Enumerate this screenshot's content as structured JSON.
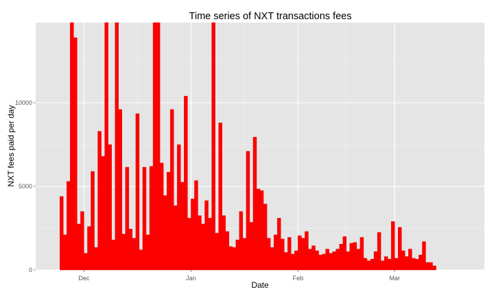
{
  "chart_data": {
    "type": "bar",
    "title": "Time series of NXT transactions fees",
    "xlabel": "Date",
    "ylabel": "NXT fees paid per day",
    "x_ticks": [
      {
        "label": "Dec",
        "date": "2013-12-01"
      },
      {
        "label": "Jan",
        "date": "2014-01-01"
      },
      {
        "label": "Feb",
        "date": "2014-02-01"
      },
      {
        "label": "Mar",
        "date": "2014-03-01"
      }
    ],
    "y_ticks": [
      0,
      5000,
      10000
    ],
    "ylim": [
      0,
      14800
    ],
    "xlim": [
      "2013-11-17",
      "2014-03-27"
    ],
    "grid": true,
    "colors": {
      "bar": "#ff0000",
      "panel": "#e5e5e5",
      "grid_major": "#ffffff",
      "grid_minor": "#f2f2f2"
    },
    "start_date": "2013-11-24",
    "values": [
      4400,
      2100,
      5300,
      14800,
      13900,
      2750,
      3500,
      1000,
      2600,
      5900,
      1350,
      8300,
      6800,
      14800,
      7500,
      1800,
      14800,
      9600,
      2150,
      6150,
      2450,
      1900,
      9350,
      1200,
      6150,
      2100,
      6200,
      14800,
      14800,
      6400,
      4450,
      5850,
      9600,
      3850,
      7500,
      5250,
      10400,
      3100,
      4250,
      5350,
      3250,
      2750,
      4150,
      3100,
      14800,
      2200,
      8800,
      3250,
      2300,
      1400,
      1350,
      1800,
      3500,
      1900,
      7100,
      2850,
      7950,
      4850,
      4750,
      3950,
      1900,
      1350,
      2100,
      3100,
      1850,
      1050,
      1950,
      950,
      1150,
      2050,
      1900,
      2300,
      1250,
      1450,
      1150,
      900,
      950,
      1250,
      1000,
      1100,
      1250,
      1550,
      2000,
      1100,
      1600,
      1650,
      1250,
      1950,
      700,
      550,
      650,
      1100,
      2250,
      550,
      800,
      650,
      2900,
      700,
      2550,
      1150,
      800,
      1250,
      700,
      650,
      900,
      1700,
      450,
      450,
      250
    ]
  }
}
